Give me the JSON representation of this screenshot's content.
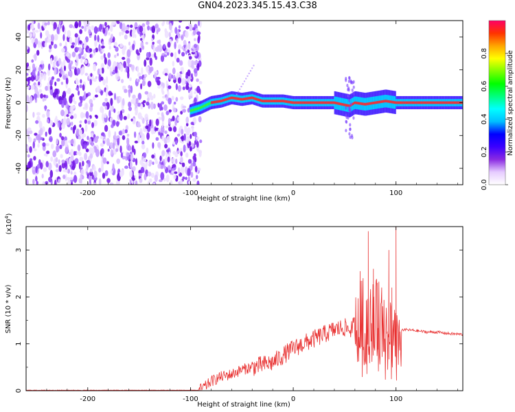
{
  "title": "GN04.2023.345.15.43.C38",
  "chart_data": [
    {
      "type": "heatmap",
      "xlabel": "Height of straight line (km)",
      "ylabel": "Frequency (Hz)",
      "xlim": [
        -260,
        165
      ],
      "ylim": [
        -50,
        50
      ],
      "xticks": [
        -200,
        -100,
        0,
        100
      ],
      "yticks": [
        -40,
        -20,
        0,
        20,
        40
      ],
      "colorbar": {
        "label": "Normalized spectral amplitude",
        "range": [
          0,
          1
        ],
        "ticks": [
          "0.0",
          "0.2",
          "0.4",
          "0.6",
          "0.8"
        ],
        "colors": [
          "#ffffff",
          "#e6ccff",
          "#8a2be2",
          "#3b00ff",
          "#0000ff",
          "#00bfff",
          "#00ffff",
          "#00ff7f",
          "#00ff00",
          "#7fff00",
          "#ffff00",
          "#ffa500",
          "#ff3300",
          "#ff0066"
        ]
      },
      "noise_region_x": [
        -260,
        -90
      ],
      "ridge": [
        {
          "x": -100,
          "y": -5
        },
        {
          "x": -90,
          "y": -3
        },
        {
          "x": -80,
          "y": 0
        },
        {
          "x": -70,
          "y": 1
        },
        {
          "x": -60,
          "y": 3
        },
        {
          "x": -50,
          "y": 2
        },
        {
          "x": -40,
          "y": 3
        },
        {
          "x": -30,
          "y": 1
        },
        {
          "x": -20,
          "y": 1
        },
        {
          "x": -10,
          "y": 1
        },
        {
          "x": 0,
          "y": 0
        },
        {
          "x": 20,
          "y": 0
        },
        {
          "x": 40,
          "y": 0
        },
        {
          "x": 55,
          "y": -2
        },
        {
          "x": 60,
          "y": 0
        },
        {
          "x": 70,
          "y": -1
        },
        {
          "x": 80,
          "y": 0
        },
        {
          "x": 90,
          "y": 1
        },
        {
          "x": 100,
          "y": 0
        },
        {
          "x": 130,
          "y": 0
        },
        {
          "x": 165,
          "y": 0
        }
      ]
    },
    {
      "type": "line",
      "xlabel": "Height of straight line (km)",
      "ylabel": "SNR (10 * v/v)",
      "y_multiplier": "(x10",
      "y_multiplier_exp": "4",
      "xlim": [
        -260,
        165
      ],
      "ylim": [
        0,
        3.5
      ],
      "xticks": [
        -200,
        -100,
        0,
        100
      ],
      "yticks": [
        0,
        1,
        2,
        3
      ],
      "series": [
        {
          "color": "#e83030",
          "x": [
            -260,
            -200,
            -100,
            -92,
            -85,
            -80,
            -70,
            -60,
            -50,
            -40,
            -30,
            -20,
            -10,
            0,
            10,
            20,
            30,
            40,
            50,
            55,
            60,
            65,
            70,
            75,
            80,
            85,
            90,
            95,
            100,
            105,
            110,
            120,
            130,
            140,
            150,
            165
          ],
          "y": [
            0.01,
            0.01,
            0.01,
            0.01,
            0.1,
            0.2,
            0.3,
            0.35,
            0.45,
            0.5,
            0.55,
            0.6,
            0.75,
            0.9,
            1.0,
            1.1,
            1.2,
            1.3,
            1.35,
            1.3,
            1.4,
            1.5,
            1.45,
            1.5,
            1.5,
            1.45,
            1.3,
            1.25,
            1.25,
            1.3,
            1.3,
            1.28,
            1.25,
            1.25,
            1.22,
            1.2
          ]
        }
      ],
      "peaks": [
        {
          "x": 65,
          "y": 2.55
        },
        {
          "x": 68,
          "y": 2.4
        },
        {
          "x": 73,
          "y": 3.4
        },
        {
          "x": 78,
          "y": 2.6
        },
        {
          "x": 82,
          "y": 2.3
        },
        {
          "x": 93,
          "y": 3.0
        },
        {
          "x": 96,
          "y": 2.2
        },
        {
          "x": 100,
          "y": 3.5
        }
      ]
    }
  ]
}
